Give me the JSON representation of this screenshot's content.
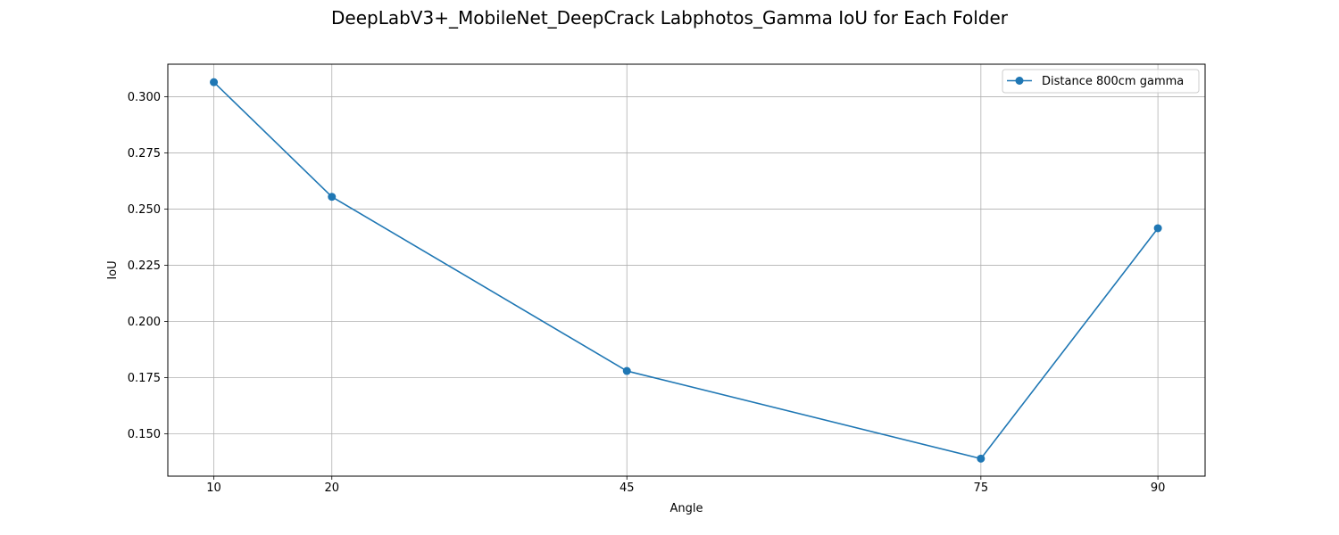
{
  "chart_data": {
    "type": "line",
    "title": "DeepLabV3+_MobileNet_DeepCrack Labphotos_Gamma IoU for Each Folder",
    "xlabel": "Angle",
    "ylabel": "IoU",
    "x": [
      10,
      20,
      45,
      75,
      90
    ],
    "x_tick_labels": [
      "10",
      "20",
      "45",
      "75",
      "90"
    ],
    "y_ticks": [
      0.15,
      0.175,
      0.2,
      0.225,
      0.25,
      0.275,
      0.3
    ],
    "y_tick_labels": [
      "0.150",
      "0.175",
      "0.200",
      "0.225",
      "0.250",
      "0.275",
      "0.300"
    ],
    "xlim": [
      6.1,
      94.0
    ],
    "ylim": [
      0.1312,
      0.3145
    ],
    "grid": true,
    "legend_position": "top-right",
    "series": [
      {
        "name": "Distance 800cm gamma",
        "color": "#1f77b4",
        "marker": "circle",
        "values": [
          0.3065,
          0.2555,
          0.178,
          0.139,
          0.2415
        ]
      }
    ]
  }
}
